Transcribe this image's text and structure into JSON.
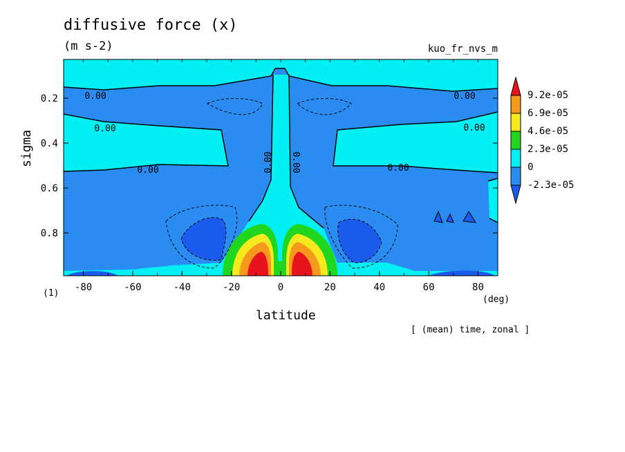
{
  "chart_data": {
    "type": "contour",
    "title": "diffusive force (x)",
    "units": "(m s-2)",
    "variable": "kuo_fr_nvs_m",
    "xlabel": "latitude",
    "xunit": "(deg)",
    "ylabel": "sigma",
    "panel_label": "(1)",
    "footnote": "[ (mean) time, zonal ]",
    "xlim": [
      -88,
      88
    ],
    "ylim": [
      0.0,
      1.0
    ],
    "y_inverted": true,
    "x_ticks": [
      "-80",
      "-60",
      "-40",
      "-20",
      "0",
      "20",
      "40",
      "60",
      "80"
    ],
    "x_tick_values": [
      -80,
      -60,
      -40,
      -20,
      0,
      20,
      40,
      60,
      80
    ],
    "y_ticks": [
      "0.2",
      "0.4",
      "0.6",
      "0.8"
    ],
    "y_tick_values": [
      0.2,
      0.4,
      0.6,
      0.8
    ],
    "contour_labels": [
      "0.00",
      "0.00",
      "0.00",
      "0.00",
      "0.00",
      "0.00",
      "0.00",
      "0.00"
    ],
    "colorbar": {
      "levels": [
        "9.2e-05",
        "6.9e-05",
        "4.6e-05",
        "2.3e-05",
        "0",
        "-2.3e-05"
      ],
      "level_values": [
        9.2e-05,
        6.9e-05,
        4.6e-05,
        2.3e-05,
        0,
        -2.3e-05
      ],
      "colors": [
        "#e8141c",
        "#f59a1c",
        "#f5ea1e",
        "#20d61e",
        "#00f0f4",
        "#2a8cf0",
        "#1a5aec"
      ]
    },
    "field_colors": {
      "deep_negative": "#1a5aec",
      "negative": "#2a8cf0",
      "near_zero": "#00f0f4",
      "positive_low": "#20d61e",
      "positive_mid": "#f5ea1e",
      "positive_high": "#f59a1c",
      "positive_max": "#e8141c"
    }
  }
}
